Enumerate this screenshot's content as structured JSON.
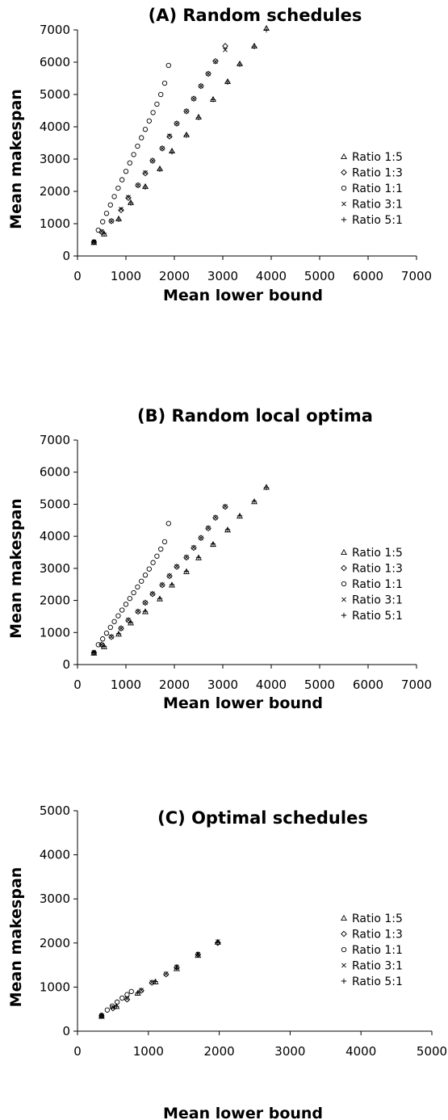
{
  "chart_data": [
    {
      "type": "scatter",
      "title": "(A) Random schedules",
      "xlabel": "Mean lower bound",
      "ylabel": "Mean makespan",
      "xlim": [
        0,
        7000
      ],
      "ylim": [
        0,
        7000
      ],
      "xticks": [
        0,
        1000,
        2000,
        3000,
        4000,
        5000,
        6000,
        7000
      ],
      "yticks": [
        0,
        1000,
        2000,
        3000,
        4000,
        5000,
        6000,
        7000
      ],
      "legend_position": "right",
      "series": [
        {
          "name": "Ratio 1:5",
          "marker": "triangle",
          "x": [
            340,
            550,
            850,
            1100,
            1400,
            1700,
            1950,
            2250,
            2500,
            2800,
            3100,
            3350,
            3650,
            3900
          ],
          "y": [
            420,
            680,
            1150,
            1650,
            2150,
            2700,
            3250,
            3750,
            4300,
            4850,
            5400,
            5950,
            6500,
            7050
          ]
        },
        {
          "name": "Ratio 1:3",
          "marker": "diamond",
          "x": [
            340,
            500,
            700,
            900,
            1050,
            1250,
            1400,
            1550,
            1750,
            1900,
            2050,
            2250,
            2400,
            2550,
            2700,
            2850,
            3050
          ],
          "y": [
            430,
            740,
            1080,
            1420,
            1800,
            2190,
            2560,
            2950,
            3330,
            3700,
            4100,
            4480,
            4870,
            5260,
            5640,
            6030,
            6500
          ]
        },
        {
          "name": "Ratio 1:1",
          "marker": "circle",
          "x": [
            340,
            430,
            520,
            600,
            680,
            760,
            840,
            920,
            1000,
            1080,
            1160,
            1240,
            1320,
            1400,
            1480,
            1560,
            1640,
            1720,
            1800,
            1880
          ],
          "y": [
            430,
            800,
            1060,
            1320,
            1580,
            1840,
            2100,
            2360,
            2620,
            2880,
            3140,
            3400,
            3660,
            3920,
            4180,
            4440,
            4700,
            5000,
            5350,
            5900
          ]
        },
        {
          "name": "Ratio 3:1",
          "marker": "x",
          "x": [
            340,
            500,
            700,
            900,
            1050,
            1250,
            1400,
            1550,
            1750,
            1900,
            2050,
            2250,
            2400,
            2550,
            2700,
            2850,
            3050
          ],
          "y": [
            440,
            760,
            1080,
            1450,
            1820,
            2190,
            2580,
            2950,
            3330,
            3720,
            4100,
            4480,
            4870,
            5260,
            5640,
            6020,
            6380
          ]
        },
        {
          "name": "Ratio 5:1",
          "marker": "plus",
          "x": [
            340,
            550,
            850,
            1100,
            1400,
            1700,
            1950,
            2250,
            2500,
            2800,
            3100,
            3350,
            3650,
            3900
          ],
          "y": [
            430,
            700,
            1130,
            1640,
            2130,
            2680,
            3220,
            3740,
            4280,
            4840,
            5380,
            5930,
            6480,
            7000
          ]
        }
      ]
    },
    {
      "type": "scatter",
      "title": "(B) Random local optima",
      "xlabel": "Mean lower bound",
      "ylabel": "Mean makespan",
      "xlim": [
        0,
        7000
      ],
      "ylim": [
        0,
        7000
      ],
      "xticks": [
        0,
        1000,
        2000,
        3000,
        4000,
        5000,
        6000,
        7000
      ],
      "yticks": [
        0,
        1000,
        2000,
        3000,
        4000,
        5000,
        6000,
        7000
      ],
      "legend_position": "right",
      "series": [
        {
          "name": "Ratio 1:5",
          "marker": "triangle",
          "x": [
            340,
            550,
            850,
            1100,
            1400,
            1700,
            1950,
            2250,
            2500,
            2800,
            3100,
            3350,
            3650,
            3900
          ],
          "y": [
            360,
            560,
            950,
            1300,
            1650,
            2050,
            2480,
            2900,
            3330,
            3750,
            4200,
            4630,
            5080,
            5530
          ]
        },
        {
          "name": "Ratio 1:3",
          "marker": "diamond",
          "x": [
            340,
            500,
            700,
            900,
            1050,
            1250,
            1400,
            1550,
            1750,
            1900,
            2050,
            2250,
            2400,
            2550,
            2700,
            2850,
            3050
          ],
          "y": [
            370,
            620,
            860,
            1130,
            1380,
            1650,
            1930,
            2200,
            2480,
            2760,
            3050,
            3340,
            3640,
            3950,
            4250,
            4580,
            4920
          ]
        },
        {
          "name": "Ratio 1:1",
          "marker": "circle",
          "x": [
            340,
            430,
            520,
            600,
            680,
            760,
            840,
            920,
            1000,
            1080,
            1160,
            1240,
            1320,
            1400,
            1480,
            1560,
            1640,
            1720,
            1800,
            1880
          ],
          "y": [
            370,
            620,
            800,
            980,
            1160,
            1340,
            1520,
            1700,
            1880,
            2060,
            2240,
            2420,
            2600,
            2790,
            2980,
            3180,
            3380,
            3600,
            3830,
            4400
          ]
        },
        {
          "name": "Ratio 3:1",
          "marker": "x",
          "x": [
            340,
            500,
            700,
            900,
            1050,
            1250,
            1400,
            1550,
            1750,
            1900,
            2050,
            2250,
            2400,
            2550,
            2700,
            2850,
            3050
          ],
          "y": [
            380,
            620,
            870,
            1130,
            1390,
            1660,
            1930,
            2210,
            2490,
            2770,
            3060,
            3350,
            3650,
            3950,
            4260,
            4590,
            4930
          ]
        },
        {
          "name": "Ratio 5:1",
          "marker": "plus",
          "x": [
            340,
            550,
            850,
            1100,
            1400,
            1700,
            1950,
            2250,
            2500,
            2800,
            3100,
            3350,
            3650,
            3900
          ],
          "y": [
            370,
            570,
            960,
            1310,
            1660,
            2060,
            2490,
            2910,
            3340,
            3760,
            4210,
            4640,
            5090,
            5520
          ]
        }
      ]
    },
    {
      "type": "scatter",
      "title": "(C) Optimal schedules",
      "xlabel": "Mean lower bound",
      "ylabel": "Mean makespan",
      "xlim": [
        0,
        5000
      ],
      "ylim": [
        0,
        5000
      ],
      "xticks": [
        0,
        1000,
        2000,
        3000,
        4000,
        5000
      ],
      "yticks": [
        0,
        1000,
        2000,
        3000,
        4000,
        5000
      ],
      "legend_position": "right",
      "series": [
        {
          "name": "Ratio 1:5",
          "marker": "triangle",
          "x": [
            340,
            550,
            850,
            1100,
            1400,
            1700,
            1980
          ],
          "y": [
            340,
            560,
            860,
            1120,
            1420,
            1720,
            2020
          ]
        },
        {
          "name": "Ratio 1:3",
          "marker": "diamond",
          "x": [
            340,
            500,
            700,
            900,
            1050,
            1250,
            1400,
            1700,
            1980
          ],
          "y": [
            345,
            520,
            720,
            920,
            1100,
            1290,
            1450,
            1740,
            2000
          ]
        },
        {
          "name": "Ratio 1:1",
          "marker": "circle",
          "x": [
            340,
            420,
            490,
            560,
            630,
            700,
            760
          ],
          "y": [
            360,
            480,
            570,
            660,
            750,
            830,
            900
          ]
        },
        {
          "name": "Ratio 3:1",
          "marker": "x",
          "x": [
            340,
            500,
            700,
            900,
            1050,
            1250,
            1400,
            1700,
            1980
          ],
          "y": [
            350,
            540,
            740,
            930,
            1110,
            1300,
            1460,
            1750,
            2030
          ]
        },
        {
          "name": "Ratio 5:1",
          "marker": "plus",
          "x": [
            340,
            550,
            850,
            1100,
            1400,
            1700,
            1980
          ],
          "y": [
            345,
            565,
            865,
            1125,
            1425,
            1725,
            2025
          ]
        }
      ]
    }
  ]
}
